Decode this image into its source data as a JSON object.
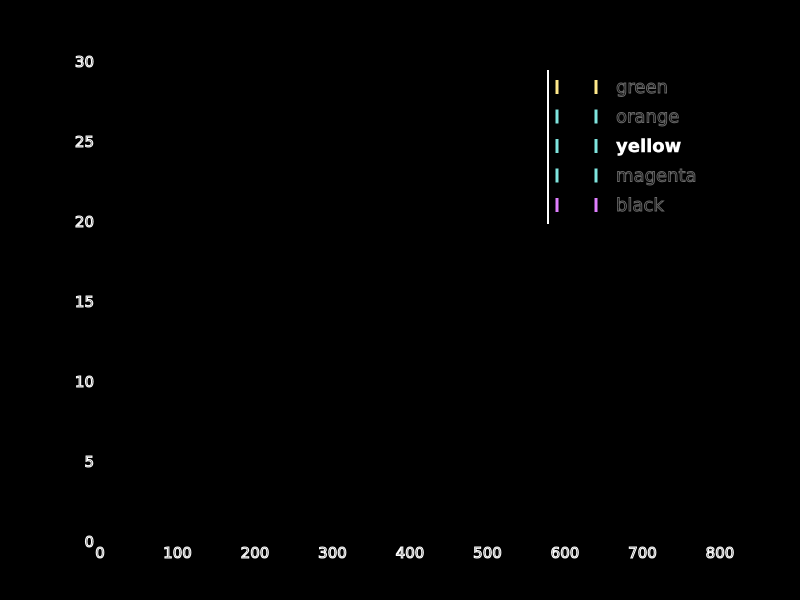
{
  "chart_data": {
    "type": "line",
    "title": "",
    "xlabel": "",
    "ylabel": "",
    "xlim": [
      0,
      800
    ],
    "ylim": [
      0,
      30
    ],
    "x_ticks": [
      0,
      100,
      200,
      300,
      400,
      500,
      600,
      700,
      800
    ],
    "y_ticks": [
      0,
      5,
      10,
      15,
      20,
      25,
      30
    ],
    "grid": false,
    "legend_position": "top-right",
    "series": [
      {
        "name": "green",
        "color": "#ffe98a",
        "values": []
      },
      {
        "name": "orange",
        "color": "#7fe6df",
        "values": []
      },
      {
        "name": "yellow",
        "color": "#7fe6df",
        "values": []
      },
      {
        "name": "magenta",
        "color": "#7fe6df",
        "values": []
      },
      {
        "name": "black",
        "color": "#e07fff",
        "values": []
      }
    ],
    "highlighted_series": "yellow"
  }
}
